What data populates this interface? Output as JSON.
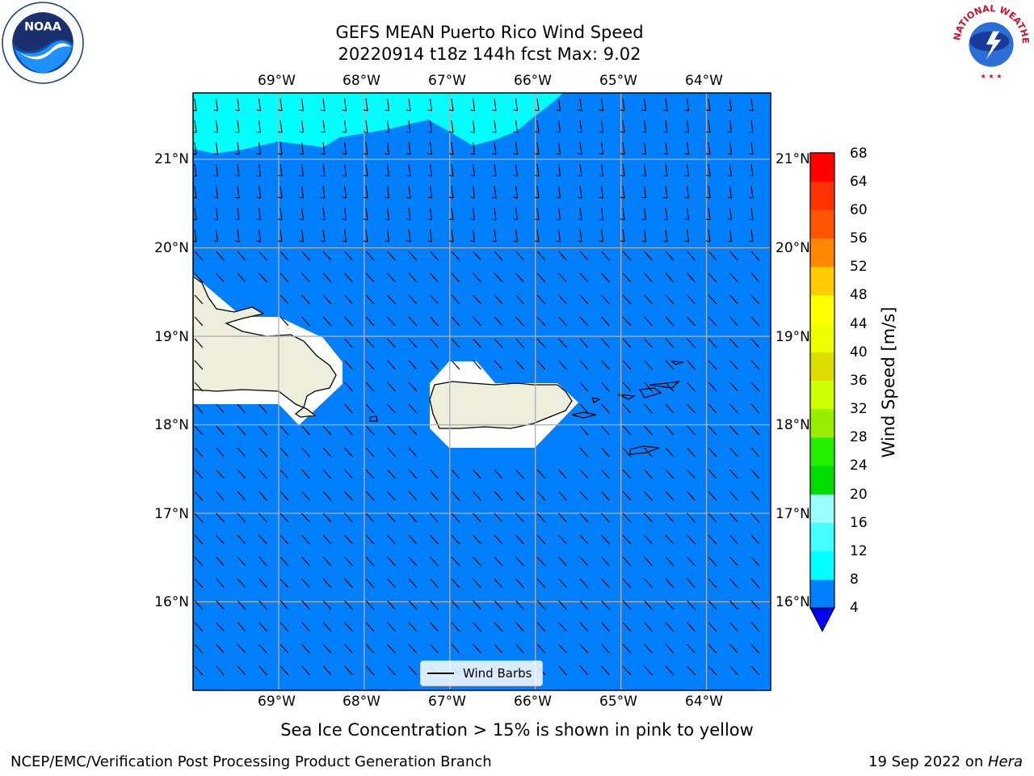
{
  "header": {
    "title_line1": "GEFS MEAN Puerto Rico Wind Speed",
    "title_line2": "20220914 t18z 144h fcst   Max: 9.02"
  },
  "logos": {
    "left": {
      "name": "NOAA",
      "ring_text": "NATIONAL OCEANIC AND ATMOSPHERIC ADMINISTRATION",
      "bottom_text": "U.S. DEPARTMENT OF COMMERCE"
    },
    "right": {
      "name": "NATIONAL WEATHER SERVICE"
    }
  },
  "map": {
    "lon_labels": [
      "69°W",
      "68°W",
      "67°W",
      "66°W",
      "65°W",
      "64°W"
    ],
    "lat_labels": [
      "21°N",
      "20°N",
      "19°N",
      "18°N",
      "17°N",
      "16°N"
    ],
    "lon_values": [
      -69,
      -68,
      -67,
      -66,
      -65,
      -64
    ],
    "lat_values": [
      21,
      20,
      19,
      18,
      17,
      16
    ],
    "extent": {
      "lon_min": -70,
      "lon_max": -63.25,
      "lat_min": 15,
      "lat_max": 21.75
    },
    "colors": {
      "ocean_fill": "#0080ff",
      "strong_fill": "#00ffff",
      "land": "#eeeedc",
      "gridline": "#b0b0b0"
    },
    "legend_label": "Wind Barbs"
  },
  "colorbar": {
    "label": "Wind Speed [m/s]",
    "ticks": [
      68,
      64,
      60,
      56,
      52,
      48,
      44,
      40,
      36,
      32,
      28,
      24,
      20,
      16,
      12,
      8,
      4
    ],
    "colors": [
      "#0080ff",
      "#00ffff",
      "#44ffff",
      "#99ffff",
      "#55ee77",
      "#00dd00",
      "#22ee00",
      "#99ee00",
      "#ccff00",
      "#dddd00",
      "#eeff00",
      "#ffff00",
      "#ffcc00",
      "#ffaa00",
      "#ff8800",
      "#ff5500",
      "#ff3300",
      "#ff0000"
    ],
    "under_color": "#0000ff"
  },
  "subtitle": "Sea Ice Concentration > 15% is shown in pink to yellow",
  "footer": {
    "left": "NCEP/EMC/Verification Post Processing Product Generation Branch",
    "date": "19 Sep 2022 on ",
    "host": "Hera"
  }
}
